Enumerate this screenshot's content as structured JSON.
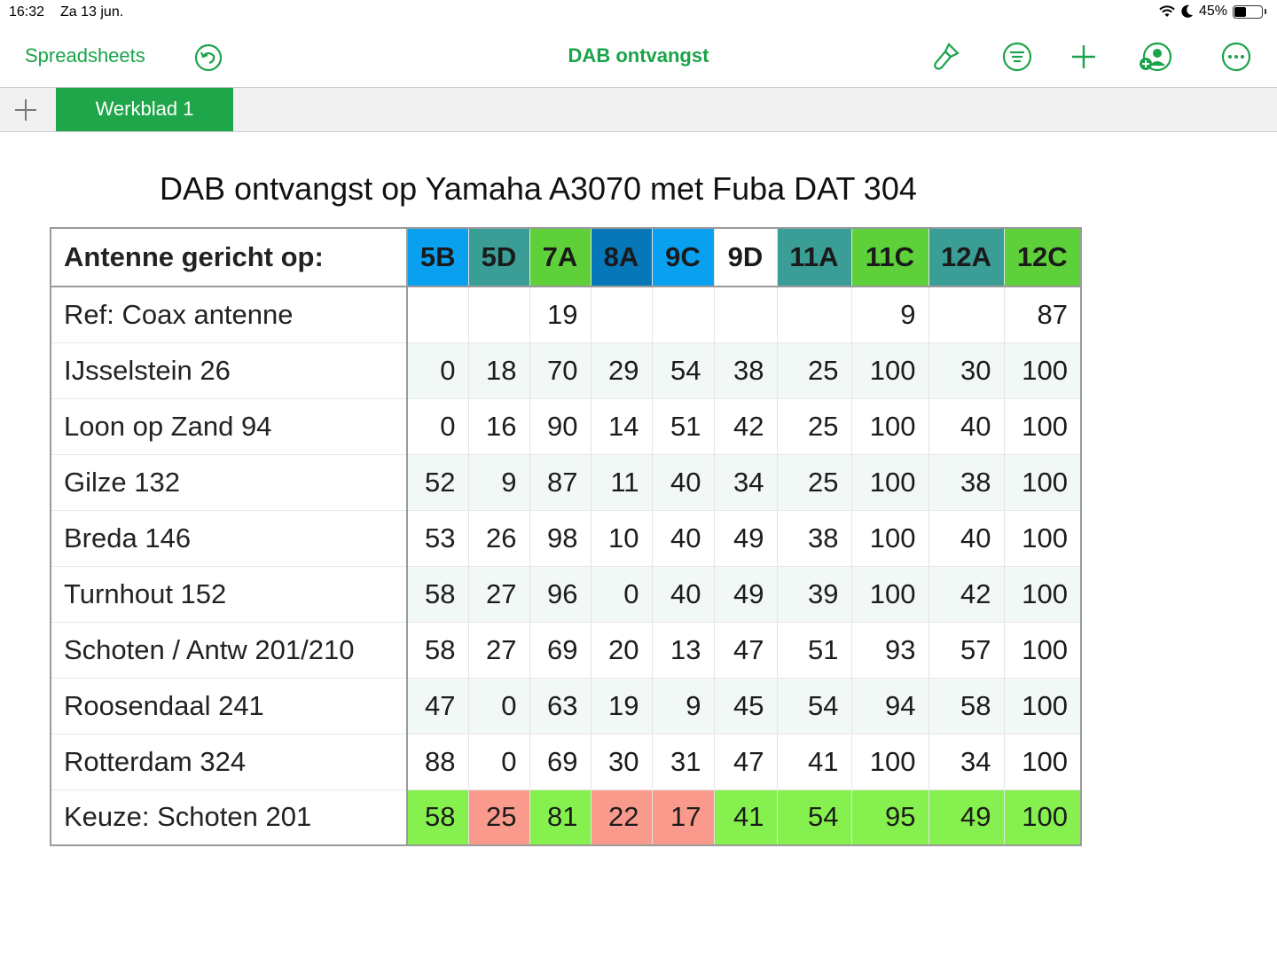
{
  "status": {
    "time": "16:32",
    "date": "Za 13 jun.",
    "battery": "45%"
  },
  "toolbar": {
    "back_label": "Spreadsheets",
    "title": "DAB ontvangst"
  },
  "tabs": {
    "active": "Werkblad 1"
  },
  "sheet": {
    "title": "DAB ontvangst op Yamaha A3070 met Fuba DAT 304"
  },
  "table": {
    "corner": "Antenne gericht op:",
    "columns": [
      {
        "label": "5B",
        "color": "#0aa0f0"
      },
      {
        "label": "5D",
        "color": "#3a9e96"
      },
      {
        "label": "7A",
        "color": "#5ed13a"
      },
      {
        "label": "8A",
        "color": "#0677b8"
      },
      {
        "label": "9C",
        "color": "#0aa0f0"
      },
      {
        "label": "9D",
        "color": "#ffffff"
      },
      {
        "label": "11A",
        "color": "#3a9e96"
      },
      {
        "label": "11C",
        "color": "#5ed13a"
      },
      {
        "label": "12A",
        "color": "#3a9e96"
      },
      {
        "label": "12C",
        "color": "#5ed13a"
      }
    ],
    "rows": [
      {
        "label": "Ref: Coax antenne",
        "values": [
          "",
          "",
          "19",
          "",
          "",
          "",
          "",
          "9",
          "",
          "87"
        ]
      },
      {
        "label": "IJsselstein 26",
        "values": [
          "0",
          "18",
          "70",
          "29",
          "54",
          "38",
          "25",
          "100",
          "30",
          "100"
        ]
      },
      {
        "label": "Loon op Zand 94",
        "values": [
          "0",
          "16",
          "90",
          "14",
          "51",
          "42",
          "25",
          "100",
          "40",
          "100"
        ]
      },
      {
        "label": "Gilze 132",
        "values": [
          "52",
          "9",
          "87",
          "11",
          "40",
          "34",
          "25",
          "100",
          "38",
          "100"
        ]
      },
      {
        "label": "Breda 146",
        "values": [
          "53",
          "26",
          "98",
          "10",
          "40",
          "49",
          "38",
          "100",
          "40",
          "100"
        ]
      },
      {
        "label": "Turnhout 152",
        "values": [
          "58",
          "27",
          "96",
          "0",
          "40",
          "49",
          "39",
          "100",
          "42",
          "100"
        ]
      },
      {
        "label": "Schoten / Antw 201/210",
        "values": [
          "58",
          "27",
          "69",
          "20",
          "13",
          "47",
          "51",
          "93",
          "57",
          "100"
        ]
      },
      {
        "label": "Roosendaal 241",
        "values": [
          "47",
          "0",
          "63",
          "19",
          "9",
          "45",
          "54",
          "94",
          "58",
          "100"
        ]
      },
      {
        "label": "Rotterdam 324",
        "values": [
          "88",
          "0",
          "69",
          "30",
          "31",
          "47",
          "41",
          "100",
          "34",
          "100"
        ]
      }
    ],
    "choice": {
      "label": "Keuze: Schoten 201",
      "values": [
        "58",
        "25",
        "81",
        "22",
        "17",
        "41",
        "54",
        "95",
        "49",
        "100"
      ],
      "colors": [
        "#86f04e",
        "#f99a8c",
        "#86f04e",
        "#f99a8c",
        "#f99a8c",
        "#86f04e",
        "#86f04e",
        "#86f04e",
        "#86f04e",
        "#86f04e"
      ]
    }
  }
}
